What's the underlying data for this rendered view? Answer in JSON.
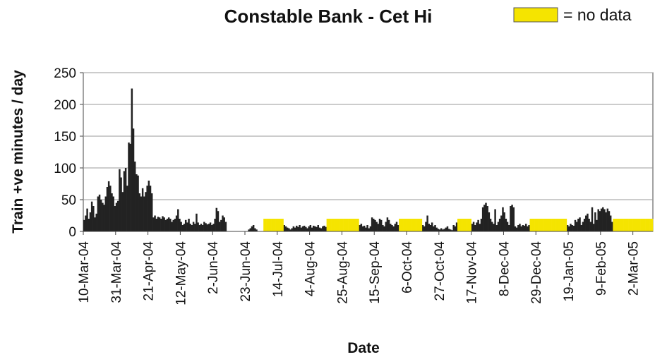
{
  "chart_data": {
    "type": "bar",
    "title": "Constable Bank - Cet Hi",
    "xlabel": "Date",
    "ylabel": "Train +ve minutes / day",
    "ylim": [
      0,
      250
    ],
    "yticks": [
      0,
      50,
      100,
      150,
      200,
      250
    ],
    "grid": true,
    "legend": "top right",
    "categories": [
      "10-Mar-04",
      null,
      null,
      null,
      null,
      null,
      null,
      null,
      null,
      null,
      null,
      null,
      null,
      null,
      null,
      null,
      null,
      null,
      null,
      null,
      null,
      "31-Mar-04",
      null,
      null,
      null,
      null,
      null,
      null,
      null,
      null,
      null,
      null,
      null,
      null,
      null,
      null,
      null,
      null,
      null,
      null,
      null,
      null,
      "21-Apr-04",
      null,
      null,
      null,
      null,
      null,
      null,
      null,
      null,
      null,
      null,
      null,
      null,
      null,
      null,
      null,
      null,
      null,
      null,
      null,
      null,
      "12-May-04",
      null,
      null,
      null,
      null,
      null,
      null,
      null,
      null,
      null,
      null,
      null,
      null,
      null,
      null,
      null,
      null,
      null,
      null,
      null,
      null,
      "2-Jun-04",
      null,
      null,
      null,
      null,
      null,
      null,
      null,
      null,
      null,
      null,
      null,
      null,
      null,
      null,
      null,
      null,
      null,
      null,
      null,
      null,
      "23-Jun-04",
      null,
      null,
      null,
      null,
      null,
      null,
      null,
      null,
      null,
      null,
      null,
      null,
      null,
      null,
      null,
      null,
      null,
      null,
      null,
      null,
      "14-Jul-04",
      null,
      null,
      null,
      null,
      null,
      null,
      null,
      null,
      null,
      null,
      null,
      null,
      null,
      null,
      null,
      null,
      null,
      null,
      null,
      null,
      "4-Aug-04",
      null,
      null,
      null,
      null,
      null,
      null,
      null,
      null,
      null,
      null,
      null,
      null,
      null,
      null,
      null,
      null,
      null,
      null,
      null,
      null,
      "25-Aug-04",
      null,
      null,
      null,
      null,
      null,
      null,
      null,
      null,
      null,
      null,
      null,
      null,
      null,
      null,
      null,
      null,
      null,
      null,
      null,
      null,
      "15-Sep-04",
      null,
      null,
      null,
      null,
      null,
      null,
      null,
      null,
      null,
      null,
      null,
      null,
      null,
      null,
      null,
      null,
      null,
      null,
      null,
      null,
      "6-Oct-04",
      null,
      null,
      null,
      null,
      null,
      null,
      null,
      null,
      null,
      null,
      null,
      null,
      null,
      null,
      null,
      null,
      null,
      null,
      null,
      null,
      "27-Oct-04",
      null,
      null,
      null,
      null,
      null,
      null,
      null,
      null,
      null,
      null,
      null,
      null,
      null,
      null,
      null,
      null,
      null,
      null,
      null,
      null,
      "17-Nov-04",
      null,
      null,
      null,
      null,
      null,
      null,
      null,
      null,
      null,
      null,
      null,
      null,
      null,
      null,
      null,
      null,
      null,
      null,
      null,
      null,
      "8-Dec-04",
      null,
      null,
      null,
      null,
      null,
      null,
      null,
      null,
      null,
      null,
      null,
      null,
      null,
      null,
      null,
      null,
      null,
      null,
      null,
      null,
      "29-Dec-04",
      null,
      null,
      null,
      null,
      null,
      null,
      null,
      null,
      null,
      null,
      null,
      null,
      null,
      null,
      null,
      null,
      null,
      null,
      null,
      null,
      "19-Jan-05",
      null,
      null,
      null,
      null,
      null,
      null,
      null,
      null,
      null,
      null,
      null,
      null,
      null,
      null,
      null,
      null,
      null,
      null,
      null,
      null,
      "9-Feb-05",
      null,
      null,
      null,
      null,
      null,
      null,
      null,
      null,
      null,
      null,
      null,
      null,
      null,
      null,
      null,
      null,
      null,
      null,
      null,
      null,
      "2-Mar-05",
      null,
      null,
      null,
      null,
      null,
      null,
      null,
      null,
      null,
      null,
      null,
      null
    ],
    "series": [
      {
        "name": "Train +ve minutes / day",
        "color": "#222222",
        "values": [
          18,
          25,
          36,
          20,
          30,
          47,
          40,
          22,
          28,
          55,
          58,
          50,
          45,
          42,
          55,
          70,
          79,
          72,
          60,
          55,
          40,
          45,
          48,
          98,
          85,
          62,
          95,
          100,
          72,
          140,
          138,
          225,
          162,
          110,
          90,
          88,
          60,
          55,
          68,
          55,
          62,
          72,
          80,
          72,
          60,
          22,
          25,
          20,
          23,
          22,
          20,
          24,
          22,
          18,
          20,
          22,
          20,
          15,
          18,
          20,
          25,
          35,
          20,
          15,
          10,
          12,
          18,
          14,
          20,
          12,
          10,
          15,
          12,
          28,
          14,
          10,
          12,
          10,
          15,
          13,
          11,
          12,
          14,
          10,
          12,
          20,
          37,
          32,
          15,
          18,
          25,
          22,
          15,
          0,
          0,
          0,
          0,
          0,
          0,
          0,
          0,
          0,
          0,
          0,
          0,
          0,
          0,
          3,
          5,
          8,
          10,
          5,
          3,
          0,
          0,
          0,
          0,
          null,
          null,
          null,
          null,
          null,
          null,
          null,
          null,
          null,
          null,
          null,
          null,
          null,
          10,
          8,
          6,
          5,
          3,
          5,
          8,
          6,
          9,
          7,
          10,
          6,
          8,
          9,
          7,
          5,
          8,
          10,
          6,
          9,
          8,
          7,
          10,
          6,
          5,
          8,
          9,
          7,
          null,
          null,
          null,
          null,
          null,
          null,
          null,
          null,
          null,
          null,
          null,
          null,
          null,
          null,
          null,
          null,
          null,
          null,
          null,
          null,
          null,
          10,
          12,
          8,
          9,
          6,
          10,
          5,
          8,
          22,
          20,
          18,
          15,
          12,
          20,
          18,
          10,
          8,
          15,
          22,
          18,
          12,
          10,
          8,
          12,
          15,
          10,
          null,
          null,
          null,
          null,
          null,
          null,
          null,
          null,
          null,
          null,
          null,
          null,
          null,
          null,
          null,
          10,
          8,
          15,
          25,
          12,
          10,
          14,
          8,
          10,
          6,
          4,
          3,
          5,
          3,
          4,
          6,
          8,
          4,
          3,
          2,
          10,
          8,
          14,
          null,
          null,
          null,
          null,
          null,
          null,
          null,
          null,
          null,
          12,
          15,
          10,
          14,
          18,
          12,
          20,
          38,
          42,
          45,
          40,
          30,
          20,
          15,
          12,
          35,
          10,
          15,
          20,
          25,
          38,
          30,
          20,
          15,
          10,
          40,
          42,
          38,
          8,
          6,
          10,
          12,
          8,
          10,
          9,
          12,
          8,
          10,
          null,
          null,
          null,
          null,
          null,
          null,
          null,
          null,
          null,
          null,
          null,
          null,
          null,
          null,
          null,
          null,
          null,
          null,
          null,
          null,
          null,
          null,
          null,
          null,
          10,
          8,
          12,
          10,
          9,
          18,
          15,
          20,
          22,
          10,
          15,
          20,
          25,
          28,
          20,
          15,
          38,
          12,
          30,
          18,
          35,
          32,
          36,
          38,
          35,
          30,
          36,
          32,
          25,
          15,
          null,
          null,
          null,
          null,
          null,
          null,
          null,
          null,
          null,
          null,
          null,
          null,
          null,
          null,
          null,
          null,
          null,
          null,
          null,
          null,
          null,
          null,
          null,
          null,
          null,
          null
        ]
      },
      {
        "name": "= no data",
        "color": "#f5e400",
        "values": [
          null,
          null,
          null,
          null,
          null,
          null,
          null,
          null,
          null,
          null,
          null,
          null,
          null,
          null,
          null,
          null,
          null,
          null,
          null,
          null,
          null,
          null,
          null,
          null,
          null,
          null,
          null,
          null,
          null,
          null,
          null,
          null,
          null,
          null,
          null,
          null,
          null,
          null,
          null,
          null,
          null,
          null,
          null,
          null,
          null,
          null,
          null,
          null,
          null,
          null,
          null,
          null,
          null,
          null,
          null,
          null,
          null,
          null,
          null,
          null,
          null,
          null,
          null,
          null,
          null,
          null,
          null,
          null,
          null,
          null,
          null,
          null,
          null,
          null,
          null,
          null,
          null,
          null,
          null,
          null,
          null,
          null,
          null,
          null,
          null,
          null,
          null,
          null,
          null,
          null,
          null,
          null,
          null,
          null,
          null,
          null,
          null,
          null,
          null,
          null,
          null,
          null,
          null,
          null,
          null,
          null,
          null,
          null,
          null,
          null,
          null,
          null,
          null,
          null,
          null,
          null,
          null,
          20,
          20,
          20,
          20,
          20,
          20,
          20,
          20,
          20,
          20,
          20,
          20,
          20,
          null,
          null,
          null,
          null,
          null,
          null,
          null,
          null,
          null,
          null,
          null,
          null,
          null,
          null,
          null,
          null,
          null,
          null,
          null,
          null,
          null,
          null,
          null,
          null,
          null,
          null,
          null,
          null,
          20,
          20,
          20,
          20,
          20,
          20,
          20,
          20,
          20,
          20,
          20,
          20,
          20,
          20,
          20,
          20,
          20,
          20,
          20,
          20,
          20,
          null,
          null,
          null,
          null,
          null,
          null,
          null,
          null,
          null,
          null,
          null,
          null,
          null,
          null,
          null,
          null,
          null,
          null,
          null,
          null,
          null,
          null,
          null,
          null,
          null,
          null,
          20,
          20,
          20,
          20,
          20,
          20,
          20,
          20,
          20,
          20,
          20,
          20,
          20,
          20,
          20,
          null,
          null,
          null,
          null,
          null,
          null,
          null,
          null,
          null,
          null,
          null,
          null,
          null,
          null,
          null,
          null,
          null,
          null,
          null,
          null,
          null,
          null,
          null,
          20,
          20,
          20,
          20,
          20,
          20,
          20,
          20,
          20,
          null,
          null,
          null,
          null,
          null,
          null,
          null,
          null,
          null,
          null,
          null,
          null,
          null,
          null,
          null,
          null,
          null,
          null,
          null,
          null,
          null,
          null,
          null,
          null,
          null,
          null,
          null,
          null,
          null,
          null,
          null,
          null,
          null,
          null,
          null,
          null,
          null,
          null,
          20,
          20,
          20,
          20,
          20,
          20,
          20,
          20,
          20,
          20,
          20,
          20,
          20,
          20,
          20,
          20,
          20,
          20,
          20,
          20,
          20,
          20,
          20,
          20,
          null,
          null,
          null,
          null,
          null,
          null,
          null,
          null,
          null,
          null,
          null,
          null,
          null,
          null,
          null,
          null,
          null,
          null,
          null,
          null,
          null,
          null,
          null,
          null,
          null,
          null,
          null,
          null,
          null,
          null,
          20,
          20,
          20,
          20,
          20,
          20,
          20,
          20,
          20,
          20,
          20,
          20,
          20,
          20,
          20,
          20,
          20,
          20,
          20,
          20,
          20,
          20,
          20,
          20,
          20,
          20
        ]
      }
    ]
  }
}
